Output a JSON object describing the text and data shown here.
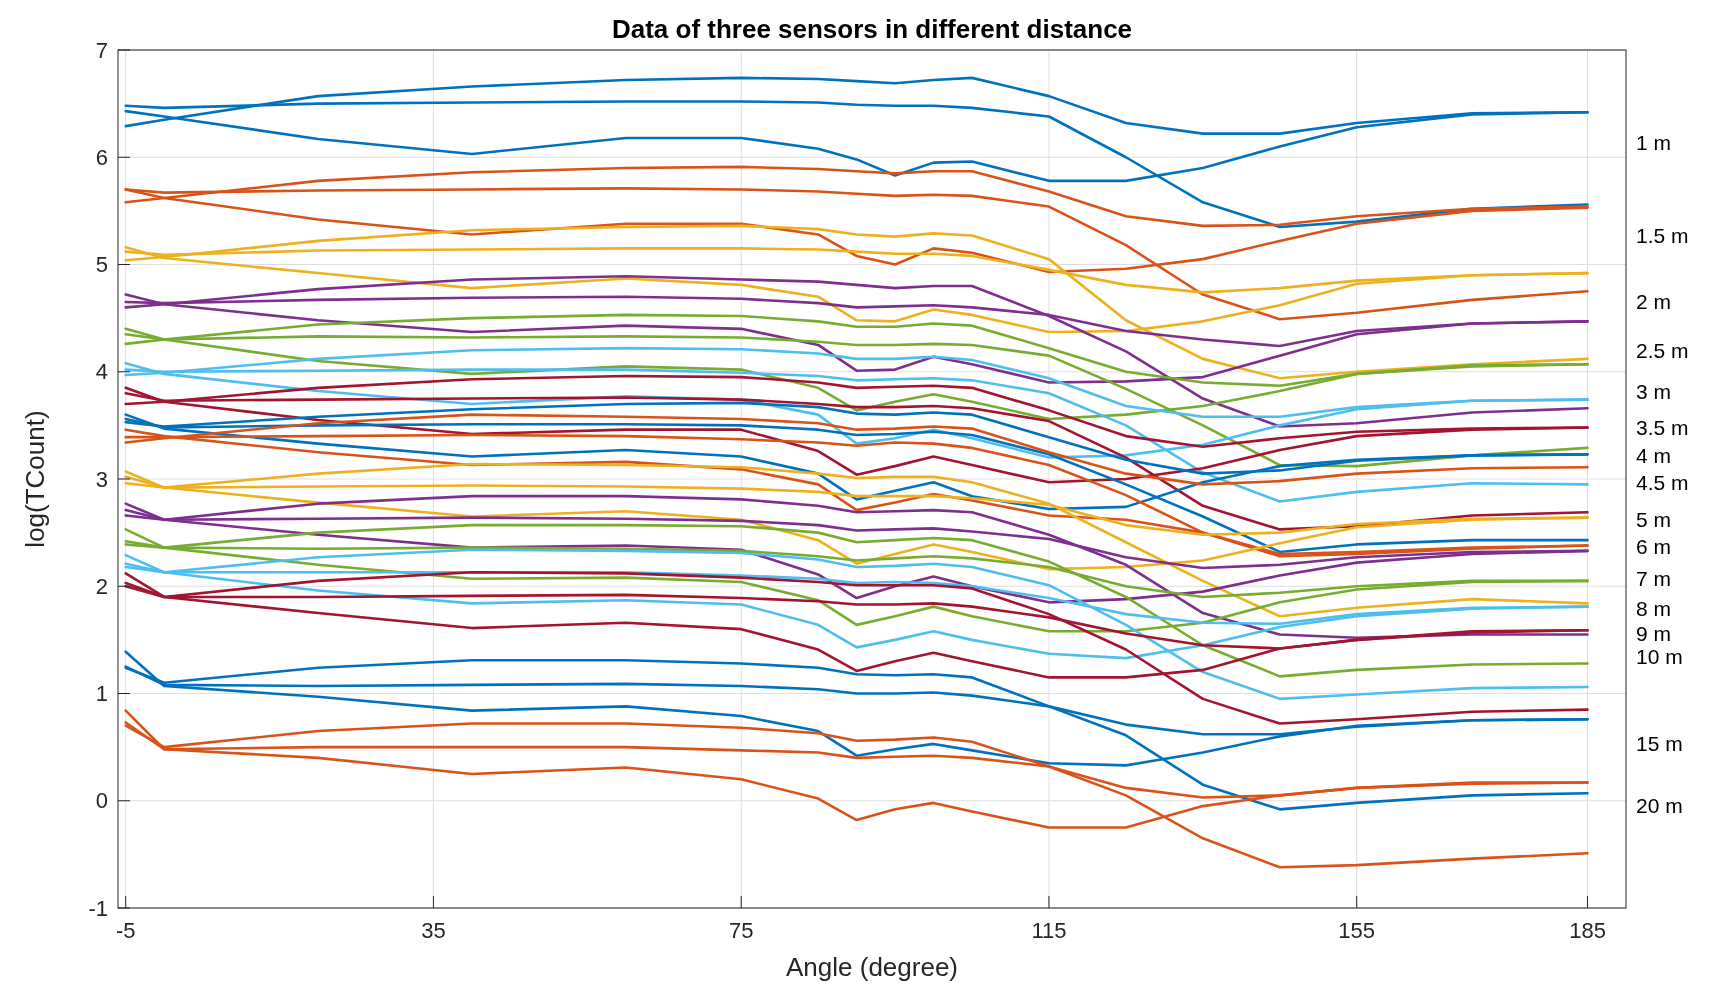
{
  "chart_data": {
    "type": "line",
    "title": "Data of three sensors in different distance",
    "xlabel": "Angle (degree)",
    "ylabel": "log(TCount)",
    "x": [
      -5,
      0,
      20,
      40,
      60,
      75,
      85,
      90,
      95,
      100,
      105,
      115,
      125,
      135,
      145,
      155,
      170,
      185
    ],
    "xlim": [
      -6,
      190
    ],
    "xticks": [
      -5,
      35,
      75,
      115,
      155,
      185
    ],
    "ylim": [
      -1,
      7
    ],
    "yticks": [
      -1,
      0,
      1,
      2,
      3,
      4,
      5,
      6,
      7
    ],
    "grid": true,
    "series": [
      {
        "color": "#0072bd",
        "values": [
          6.29,
          6.35,
          6.57,
          6.66,
          6.72,
          6.74,
          6.73,
          6.71,
          6.69,
          6.72,
          6.74,
          6.57,
          6.32,
          6.22,
          6.22,
          6.32,
          6.41,
          6.42
        ]
      },
      {
        "color": "#0072bd",
        "values": [
          6.48,
          6.46,
          6.5,
          6.51,
          6.52,
          6.52,
          6.51,
          6.49,
          6.48,
          6.48,
          6.46,
          6.38,
          6.0,
          5.58,
          5.35,
          5.4,
          5.52,
          5.56
        ]
      },
      {
        "color": "#0072bd",
        "values": [
          6.43,
          6.38,
          6.17,
          6.03,
          6.18,
          6.18,
          6.08,
          5.98,
          5.83,
          5.95,
          5.96,
          5.78,
          5.78,
          5.9,
          6.1,
          6.28,
          6.4,
          6.42
        ]
      },
      {
        "color": "#d95319",
        "values": [
          5.58,
          5.62,
          5.78,
          5.86,
          5.9,
          5.91,
          5.89,
          5.87,
          5.85,
          5.87,
          5.87,
          5.68,
          5.45,
          5.36,
          5.37,
          5.45,
          5.52,
          5.54
        ]
      },
      {
        "color": "#d95319",
        "values": [
          5.7,
          5.67,
          5.69,
          5.7,
          5.71,
          5.7,
          5.68,
          5.66,
          5.64,
          5.65,
          5.64,
          5.54,
          5.18,
          4.72,
          4.49,
          4.55,
          4.67,
          4.75
        ]
      },
      {
        "color": "#d95319",
        "values": [
          5.7,
          5.62,
          5.42,
          5.28,
          5.38,
          5.38,
          5.28,
          5.08,
          5.0,
          5.15,
          5.11,
          4.93,
          4.96,
          5.05,
          5.22,
          5.38,
          5.5,
          5.53
        ]
      },
      {
        "color": "#edb120",
        "values": [
          5.12,
          5.09,
          5.13,
          5.14,
          5.15,
          5.15,
          5.14,
          5.12,
          5.1,
          5.1,
          5.08,
          4.95,
          4.81,
          4.74,
          4.78,
          4.85,
          4.9,
          4.92
        ]
      },
      {
        "color": "#edb120",
        "values": [
          5.04,
          5.07,
          5.22,
          5.32,
          5.35,
          5.36,
          5.33,
          5.28,
          5.26,
          5.29,
          5.27,
          5.05,
          4.48,
          4.12,
          3.94,
          4.0,
          4.07,
          4.12
        ]
      },
      {
        "color": "#edb120",
        "values": [
          5.16,
          5.06,
          4.92,
          4.78,
          4.87,
          4.81,
          4.7,
          4.48,
          4.47,
          4.58,
          4.53,
          4.37,
          4.38,
          4.47,
          4.62,
          4.82,
          4.9,
          4.92
        ]
      },
      {
        "color": "#7e2f8e",
        "values": [
          4.6,
          4.63,
          4.77,
          4.86,
          4.89,
          4.86,
          4.84,
          4.81,
          4.78,
          4.8,
          4.8,
          4.52,
          4.19,
          3.75,
          3.49,
          3.52,
          3.62,
          3.66
        ]
      },
      {
        "color": "#7e2f8e",
        "values": [
          4.65,
          4.64,
          4.67,
          4.69,
          4.7,
          4.68,
          4.64,
          4.6,
          4.61,
          4.62,
          4.6,
          4.53,
          4.38,
          4.3,
          4.24,
          4.38,
          4.45,
          4.47
        ]
      },
      {
        "color": "#7e2f8e",
        "values": [
          4.72,
          4.63,
          4.48,
          4.37,
          4.43,
          4.4,
          4.25,
          4.01,
          4.02,
          4.14,
          4.07,
          3.9,
          3.91,
          3.95,
          4.15,
          4.35,
          4.45,
          4.47
        ]
      },
      {
        "color": "#77ac30",
        "values": [
          4.26,
          4.3,
          4.44,
          4.5,
          4.53,
          4.52,
          4.47,
          4.42,
          4.42,
          4.45,
          4.43,
          4.22,
          4.0,
          3.9,
          3.87,
          3.98,
          4.05,
          4.07
        ]
      },
      {
        "color": "#77ac30",
        "values": [
          4.35,
          4.3,
          4.33,
          4.32,
          4.33,
          4.32,
          4.28,
          4.25,
          4.25,
          4.26,
          4.25,
          4.15,
          3.84,
          3.5,
          3.13,
          3.12,
          3.22,
          3.29
        ]
      },
      {
        "color": "#77ac30",
        "values": [
          4.4,
          4.3,
          4.1,
          3.98,
          4.05,
          4.02,
          3.85,
          3.64,
          3.72,
          3.79,
          3.72,
          3.56,
          3.6,
          3.68,
          3.82,
          3.98,
          4.06,
          4.07
        ]
      },
      {
        "color": "#4dbeee",
        "values": [
          3.97,
          3.99,
          4.12,
          4.2,
          4.22,
          4.21,
          4.17,
          4.12,
          4.12,
          4.14,
          4.11,
          3.94,
          3.68,
          3.58,
          3.58,
          3.67,
          3.73,
          3.74
        ]
      },
      {
        "color": "#4dbeee",
        "values": [
          4.02,
          4.0,
          4.01,
          4.02,
          4.02,
          3.99,
          3.96,
          3.92,
          3.93,
          3.94,
          3.92,
          3.8,
          3.5,
          3.06,
          2.79,
          2.88,
          2.96,
          2.95
        ]
      },
      {
        "color": "#4dbeee",
        "values": [
          4.08,
          3.98,
          3.82,
          3.7,
          3.77,
          3.74,
          3.6,
          3.33,
          3.38,
          3.46,
          3.38,
          3.2,
          3.22,
          3.32,
          3.5,
          3.65,
          3.73,
          3.74
        ]
      },
      {
        "color": "#a2142f",
        "values": [
          3.7,
          3.72,
          3.85,
          3.93,
          3.96,
          3.95,
          3.9,
          3.85,
          3.86,
          3.87,
          3.85,
          3.64,
          3.4,
          3.3,
          3.38,
          3.44,
          3.47,
          3.48
        ]
      },
      {
        "color": "#a2142f",
        "values": [
          3.8,
          3.73,
          3.74,
          3.75,
          3.76,
          3.74,
          3.7,
          3.67,
          3.67,
          3.68,
          3.66,
          3.54,
          3.2,
          2.75,
          2.53,
          2.56,
          2.66,
          2.69
        ]
      },
      {
        "color": "#a2142f",
        "values": [
          3.85,
          3.72,
          3.55,
          3.42,
          3.46,
          3.46,
          3.26,
          3.04,
          3.12,
          3.21,
          3.13,
          2.97,
          3.0,
          3.1,
          3.27,
          3.4,
          3.46,
          3.48
        ]
      },
      {
        "color": "#0072bd",
        "values": [
          3.53,
          3.49,
          3.58,
          3.65,
          3.7,
          3.71,
          3.67,
          3.61,
          3.6,
          3.62,
          3.6,
          3.39,
          3.18,
          3.05,
          3.08,
          3.17,
          3.22,
          3.23
        ]
      },
      {
        "color": "#0072bd",
        "values": [
          3.56,
          3.48,
          3.5,
          3.51,
          3.51,
          3.5,
          3.46,
          3.41,
          3.42,
          3.44,
          3.41,
          3.23,
          2.95,
          2.65,
          2.32,
          2.39,
          2.43,
          2.43
        ]
      },
      {
        "color": "#0072bd",
        "values": [
          3.6,
          3.47,
          3.33,
          3.21,
          3.27,
          3.21,
          3.05,
          2.81,
          2.89,
          2.97,
          2.84,
          2.72,
          2.74,
          2.97,
          3.12,
          3.18,
          3.22,
          3.23
        ]
      },
      {
        "color": "#d95319",
        "values": [
          3.34,
          3.38,
          3.52,
          3.6,
          3.58,
          3.56,
          3.52,
          3.46,
          3.47,
          3.49,
          3.47,
          3.25,
          3.05,
          2.95,
          2.98,
          3.05,
          3.1,
          3.11
        ]
      },
      {
        "color": "#d95319",
        "values": [
          3.39,
          3.39,
          3.4,
          3.41,
          3.4,
          3.37,
          3.34,
          3.31,
          3.34,
          3.33,
          3.29,
          3.13,
          2.85,
          2.5,
          2.28,
          2.3,
          2.35,
          2.38
        ]
      },
      {
        "color": "#d95319",
        "values": [
          3.46,
          3.4,
          3.25,
          3.13,
          3.16,
          3.09,
          2.95,
          2.71,
          2.78,
          2.86,
          2.8,
          2.66,
          2.62,
          2.5,
          2.3,
          2.32,
          2.36,
          2.38
        ]
      },
      {
        "color": "#edb120",
        "values": [
          2.96,
          2.92,
          3.05,
          3.14,
          3.13,
          3.11,
          3.05,
          3.01,
          3.02,
          3.02,
          2.97,
          2.77,
          2.41,
          2.05,
          1.72,
          1.8,
          1.88,
          1.84
        ]
      },
      {
        "color": "#edb120",
        "values": [
          3.02,
          2.92,
          2.93,
          2.94,
          2.93,
          2.91,
          2.88,
          2.84,
          2.84,
          2.84,
          2.82,
          2.76,
          2.57,
          2.48,
          2.5,
          2.58,
          2.63,
          2.64
        ]
      },
      {
        "color": "#edb120",
        "values": [
          3.07,
          2.92,
          2.78,
          2.65,
          2.7,
          2.62,
          2.43,
          2.21,
          2.3,
          2.39,
          2.32,
          2.16,
          2.18,
          2.24,
          2.4,
          2.55,
          2.62,
          2.64
        ]
      },
      {
        "color": "#7e2f8e",
        "values": [
          2.66,
          2.62,
          2.77,
          2.84,
          2.84,
          2.81,
          2.75,
          2.69,
          2.7,
          2.71,
          2.69,
          2.48,
          2.2,
          1.75,
          1.55,
          1.52,
          1.55,
          1.55
        ]
      },
      {
        "color": "#7e2f8e",
        "values": [
          2.71,
          2.62,
          2.63,
          2.64,
          2.63,
          2.61,
          2.57,
          2.52,
          2.53,
          2.54,
          2.51,
          2.44,
          2.27,
          2.17,
          2.2,
          2.27,
          2.32,
          2.33
        ]
      },
      {
        "color": "#7e2f8e",
        "values": [
          2.77,
          2.62,
          2.48,
          2.36,
          2.38,
          2.34,
          2.11,
          1.89,
          2.0,
          2.09,
          2.0,
          1.85,
          1.88,
          1.95,
          2.1,
          2.22,
          2.3,
          2.33
        ]
      },
      {
        "color": "#77ac30",
        "values": [
          2.39,
          2.36,
          2.5,
          2.57,
          2.57,
          2.56,
          2.5,
          2.41,
          2.43,
          2.45,
          2.43,
          2.23,
          1.9,
          1.45,
          1.16,
          1.22,
          1.27,
          1.28
        ]
      },
      {
        "color": "#77ac30",
        "values": [
          2.42,
          2.36,
          2.35,
          2.36,
          2.35,
          2.33,
          2.28,
          2.24,
          2.26,
          2.28,
          2.26,
          2.18,
          2.0,
          1.9,
          1.94,
          2.0,
          2.05,
          2.05
        ]
      },
      {
        "color": "#77ac30",
        "values": [
          2.53,
          2.36,
          2.2,
          2.07,
          2.08,
          2.04,
          1.87,
          1.64,
          1.72,
          1.81,
          1.72,
          1.58,
          1.58,
          1.66,
          1.85,
          1.97,
          2.04,
          2.05
        ]
      },
      {
        "color": "#4dbeee",
        "values": [
          2.18,
          2.13,
          2.27,
          2.34,
          2.33,
          2.31,
          2.25,
          2.18,
          2.19,
          2.21,
          2.18,
          2.01,
          1.64,
          1.2,
          0.95,
          0.99,
          1.05,
          1.06
        ]
      },
      {
        "color": "#4dbeee",
        "values": [
          2.21,
          2.13,
          2.13,
          2.13,
          2.13,
          2.1,
          2.07,
          2.03,
          2.04,
          2.03,
          2.0,
          1.89,
          1.74,
          1.66,
          1.65,
          1.74,
          1.8,
          1.81
        ]
      },
      {
        "color": "#4dbeee",
        "values": [
          2.29,
          2.13,
          1.96,
          1.84,
          1.87,
          1.83,
          1.64,
          1.43,
          1.5,
          1.58,
          1.5,
          1.37,
          1.33,
          1.45,
          1.62,
          1.72,
          1.79,
          1.81
        ]
      },
      {
        "color": "#a2142f",
        "values": [
          2.0,
          1.9,
          2.05,
          2.13,
          2.12,
          2.08,
          2.04,
          2.01,
          2.01,
          2.01,
          1.98,
          1.74,
          1.41,
          0.95,
          0.72,
          0.76,
          0.83,
          0.85
        ]
      },
      {
        "color": "#a2142f",
        "values": [
          2.03,
          1.9,
          1.9,
          1.91,
          1.92,
          1.89,
          1.86,
          1.83,
          1.83,
          1.84,
          1.81,
          1.71,
          1.56,
          1.45,
          1.42,
          1.5,
          1.58,
          1.59
        ]
      },
      {
        "color": "#a2142f",
        "values": [
          2.12,
          1.9,
          1.75,
          1.61,
          1.66,
          1.6,
          1.41,
          1.21,
          1.3,
          1.38,
          1.3,
          1.15,
          1.15,
          1.22,
          1.42,
          1.5,
          1.57,
          1.59
        ]
      },
      {
        "color": "#0072bd",
        "values": [
          1.24,
          1.1,
          1.24,
          1.31,
          1.31,
          1.28,
          1.24,
          1.18,
          1.17,
          1.18,
          1.15,
          0.88,
          0.71,
          0.62,
          0.62,
          0.69,
          0.75,
          0.76
        ]
      },
      {
        "color": "#0072bd",
        "values": [
          1.25,
          1.08,
          1.07,
          1.08,
          1.09,
          1.07,
          1.04,
          1.0,
          1.0,
          1.01,
          0.98,
          0.88,
          0.61,
          0.15,
          -0.08,
          -0.02,
          0.05,
          0.07
        ]
      },
      {
        "color": "#0072bd",
        "values": [
          1.39,
          1.07,
          0.97,
          0.84,
          0.88,
          0.79,
          0.65,
          0.42,
          0.48,
          0.53,
          0.47,
          0.35,
          0.33,
          0.45,
          0.6,
          0.7,
          0.75,
          0.76
        ]
      },
      {
        "color": "#d95319",
        "values": [
          0.7,
          0.5,
          0.65,
          0.72,
          0.72,
          0.68,
          0.63,
          0.56,
          0.57,
          0.59,
          0.55,
          0.32,
          0.05,
          -0.35,
          -0.62,
          -0.6,
          -0.54,
          -0.49
        ]
      },
      {
        "color": "#d95319",
        "values": [
          0.73,
          0.48,
          0.5,
          0.5,
          0.5,
          0.47,
          0.45,
          0.4,
          0.41,
          0.42,
          0.4,
          0.32,
          0.12,
          0.03,
          0.05,
          0.12,
          0.16,
          0.17
        ]
      },
      {
        "color": "#d95319",
        "values": [
          0.84,
          0.48,
          0.4,
          0.25,
          0.31,
          0.2,
          0.02,
          -0.18,
          -0.08,
          -0.02,
          -0.1,
          -0.25,
          -0.25,
          -0.05,
          0.05,
          0.12,
          0.17,
          0.17
        ]
      }
    ],
    "annotations": [
      "1 m",
      "1.5 m",
      "2 m",
      "2.5 m",
      "3 m",
      "3.5 m",
      "4 m",
      "4.5 m",
      "5 m",
      "6 m",
      "7 m",
      "8 m",
      "9 m",
      "10 m",
      "15 m",
      "20 m"
    ]
  }
}
